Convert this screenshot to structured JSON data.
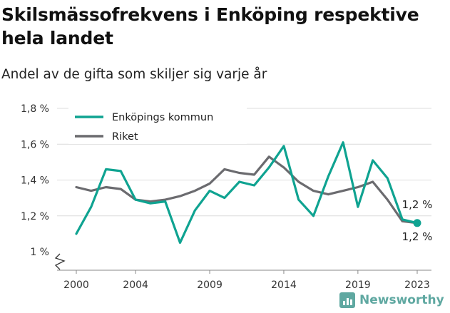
{
  "title": "Skilsmässofrekvens i Enköping respektive hela landet",
  "subtitle": "Andel av de gifta som skiljer sig varje år",
  "brand": {
    "name": "Newsworthy",
    "icon": "bar-chart-logo-icon",
    "color": "#5fa8a1"
  },
  "chart_data": {
    "type": "line",
    "x": [
      2000,
      2001,
      2002,
      2003,
      2004,
      2005,
      2006,
      2007,
      2008,
      2009,
      2010,
      2011,
      2012,
      2013,
      2014,
      2015,
      2016,
      2017,
      2018,
      2019,
      2020,
      2021,
      2022,
      2023
    ],
    "x_ticks": [
      2000,
      2004,
      2009,
      2014,
      2019,
      2023
    ],
    "y_ticks": [
      {
        "value": 1.0,
        "label": "1 %"
      },
      {
        "value": 1.2,
        "label": "1,2 %"
      },
      {
        "value": 1.4,
        "label": "1,4 %"
      },
      {
        "value": 1.6,
        "label": "1,6 %"
      },
      {
        "value": 1.8,
        "label": "1,8 %"
      }
    ],
    "ylim": [
      0.9,
      1.8
    ],
    "xlim": [
      1999,
      2024
    ],
    "grid": "horizontal",
    "legend_position": "top-left",
    "series": [
      {
        "name": "Enköpings kommun",
        "color": "#0fa391",
        "values": [
          1.1,
          1.25,
          1.46,
          1.45,
          1.29,
          1.27,
          1.28,
          1.05,
          1.23,
          1.34,
          1.3,
          1.39,
          1.37,
          1.47,
          1.59,
          1.29,
          1.2,
          1.42,
          1.61,
          1.25,
          1.51,
          1.41,
          1.18,
          1.16
        ],
        "end_label": "1,2 %"
      },
      {
        "name": "Riket",
        "color": "#6b6b6f",
        "values": [
          1.36,
          1.34,
          1.36,
          1.35,
          1.29,
          1.28,
          1.29,
          1.31,
          1.34,
          1.38,
          1.46,
          1.44,
          1.43,
          1.53,
          1.47,
          1.39,
          1.34,
          1.32,
          1.34,
          1.36,
          1.39,
          1.29,
          1.17,
          1.16
        ],
        "end_label": "1,2 %"
      }
    ]
  }
}
